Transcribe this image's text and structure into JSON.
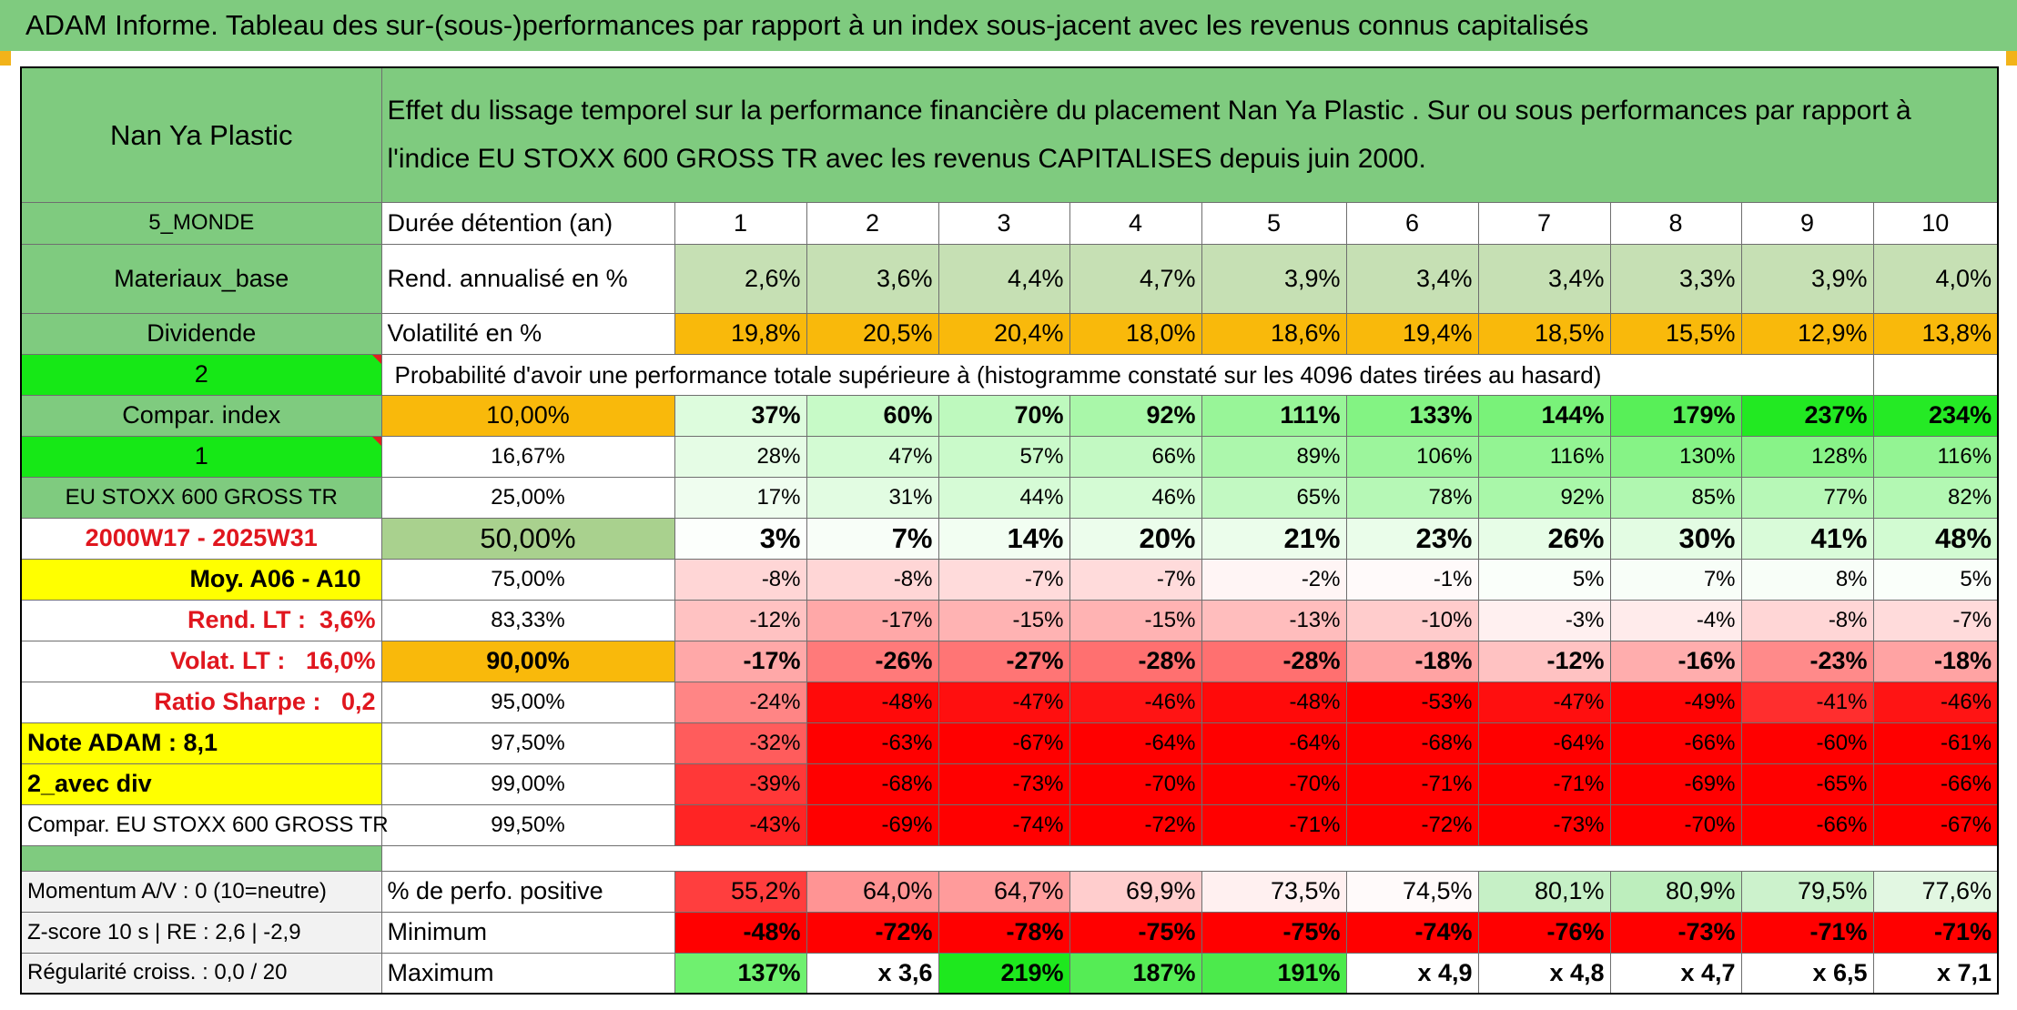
{
  "title": "ADAM Informe. Tableau des sur-(sous-)performances par rapport à un index sous-jacent avec les revenus connus capitalisés",
  "header": {
    "asset": "Nan Ya Plastic",
    "description_line1": "Effet du lissage temporel sur la performance financière du placement Nan Ya Plastic . Sur ou sous performances par rapport à",
    "description_line2": "l'indice EU STOXX 600 GROSS TR avec les revenus CAPITALISES depuis juin 2000."
  },
  "side": {
    "zone": "5_MONDE",
    "sector": "Materiaux_base",
    "dividende": "Dividende",
    "mode": "2",
    "compar_index": "Compar. index",
    "index_no": "1",
    "index_name": "EU STOXX 600 GROSS TR",
    "period": "2000W17 - 2025W31",
    "moy": "Moy. A06 - A10",
    "rend_lt_label": "Rend. LT :",
    "rend_lt_value": "3,6%",
    "volat_lt_label": "Volat. LT :",
    "volat_lt_value": "16,0%",
    "sharpe_label": "Ratio Sharpe :",
    "sharpe_value": "0,2",
    "note": "Note ADAM : 8,1",
    "avec_div": "2_avec div",
    "compar_full": "Compar. EU STOXX 600 GROSS TR"
  },
  "labels": {
    "duree": "Durée détention (an)",
    "rend": "Rend. annualisé en %",
    "vol": "Volatilité en %",
    "prob": "Probabilité d'avoir une performance totale supérieure à (histogramme constaté sur les 4096 dates tirées au hasard)",
    "pct_pos": "% de perfo. positive",
    "min": "Minimum",
    "max": "Maximum"
  },
  "years": [
    "1",
    "2",
    "3",
    "4",
    "5",
    "6",
    "7",
    "8",
    "9",
    "10"
  ],
  "rend": [
    "2,6%",
    "3,6%",
    "4,4%",
    "4,7%",
    "3,9%",
    "3,4%",
    "3,4%",
    "3,3%",
    "3,9%",
    "4,0%"
  ],
  "vol": [
    "19,8%",
    "20,5%",
    "20,4%",
    "18,0%",
    "18,6%",
    "19,4%",
    "18,5%",
    "15,5%",
    "12,9%",
    "13,8%"
  ],
  "prob_rows": [
    {
      "level": "10,00%",
      "values": [
        "37%",
        "60%",
        "70%",
        "92%",
        "111%",
        "133%",
        "144%",
        "179%",
        "237%",
        "234%"
      ]
    },
    {
      "level": "16,67%",
      "values": [
        "28%",
        "47%",
        "57%",
        "66%",
        "89%",
        "106%",
        "116%",
        "130%",
        "128%",
        "116%"
      ]
    },
    {
      "level": "25,00%",
      "values": [
        "17%",
        "31%",
        "44%",
        "46%",
        "65%",
        "78%",
        "92%",
        "85%",
        "77%",
        "82%"
      ]
    },
    {
      "level": "50,00%",
      "values": [
        "3%",
        "7%",
        "14%",
        "20%",
        "21%",
        "23%",
        "26%",
        "30%",
        "41%",
        "48%"
      ]
    },
    {
      "level": "75,00%",
      "values": [
        "-8%",
        "-8%",
        "-7%",
        "-7%",
        "-2%",
        "-1%",
        "5%",
        "7%",
        "8%",
        "5%"
      ]
    },
    {
      "level": "83,33%",
      "values": [
        "-12%",
        "-17%",
        "-15%",
        "-15%",
        "-13%",
        "-10%",
        "-3%",
        "-4%",
        "-8%",
        "-7%"
      ]
    },
    {
      "level": "90,00%",
      "values": [
        "-17%",
        "-26%",
        "-27%",
        "-28%",
        "-28%",
        "-18%",
        "-12%",
        "-16%",
        "-23%",
        "-18%"
      ]
    },
    {
      "level": "95,00%",
      "values": [
        "-24%",
        "-48%",
        "-47%",
        "-46%",
        "-48%",
        "-53%",
        "-47%",
        "-49%",
        "-41%",
        "-46%"
      ]
    },
    {
      "level": "97,50%",
      "values": [
        "-32%",
        "-63%",
        "-67%",
        "-64%",
        "-64%",
        "-68%",
        "-64%",
        "-66%",
        "-60%",
        "-61%"
      ]
    },
    {
      "level": "99,00%",
      "values": [
        "-39%",
        "-68%",
        "-73%",
        "-70%",
        "-70%",
        "-71%",
        "-71%",
        "-69%",
        "-65%",
        "-66%"
      ]
    },
    {
      "level": "99,50%",
      "values": [
        "-43%",
        "-69%",
        "-74%",
        "-72%",
        "-71%",
        "-72%",
        "-73%",
        "-70%",
        "-66%",
        "-67%"
      ]
    }
  ],
  "bottom": {
    "momentum": "Momentum A/V : 0 (10=neutre)",
    "zscore": "Z-score 10 s | RE : 2,6 | -2,9",
    "regularite": "Régularité croiss. : 0,0 / 20",
    "pct_pos": [
      "55,2%",
      "64,0%",
      "64,7%",
      "69,9%",
      "73,5%",
      "74,5%",
      "80,1%",
      "80,9%",
      "79,5%",
      "77,6%"
    ],
    "min": [
      "-48%",
      "-72%",
      "-78%",
      "-75%",
      "-75%",
      "-74%",
      "-76%",
      "-73%",
      "-71%",
      "-71%"
    ],
    "max": [
      "137%",
      "x 3,6",
      "219%",
      "187%",
      "191%",
      "x 4,9",
      "x 4,8",
      "x 4,7",
      "x 6,5",
      "x 7,1"
    ]
  },
  "colors": {
    "header_green": "#7fcb7f",
    "orange": "#f9b90b",
    "lime": "#16e816",
    "yellow": "#ffff00",
    "red_text": "#e0161e"
  }
}
